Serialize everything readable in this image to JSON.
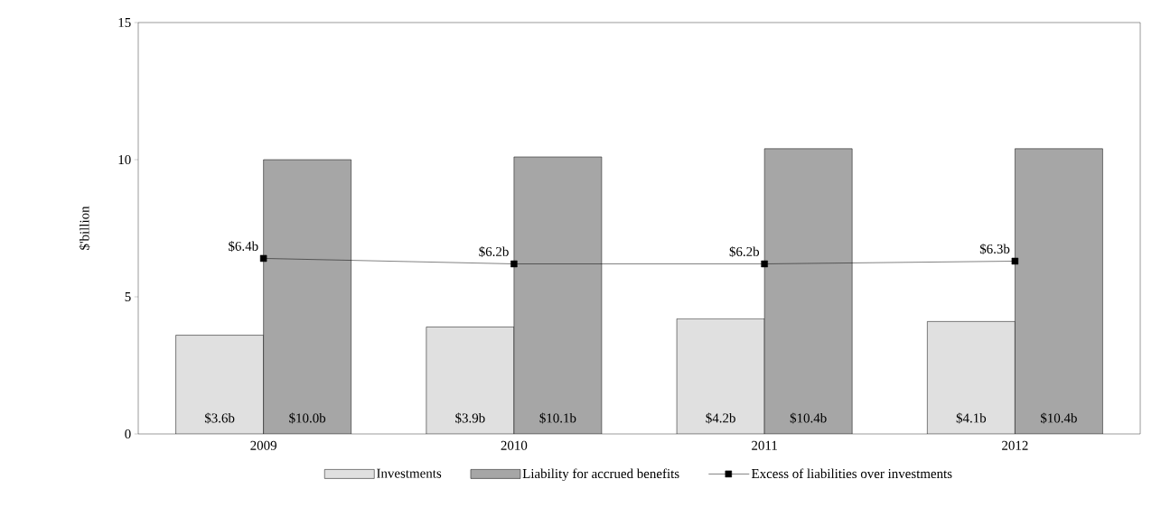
{
  "chart_data": {
    "type": "bar",
    "ylabel": "$'billion",
    "categories": [
      "2009",
      "2010",
      "2011",
      "2012"
    ],
    "ylim": [
      0,
      15
    ],
    "yticks": [
      0,
      5,
      10,
      15
    ],
    "legend": "bottom",
    "series": [
      {
        "name": "Investments",
        "color": "#e0e0e0",
        "values": [
          3.6,
          3.9,
          4.2,
          4.1
        ],
        "value_labels": [
          "$3.6b",
          "$3.9b",
          "$4.2b",
          "$4.1b"
        ]
      },
      {
        "name": "Liability for accrued benefits",
        "color": "#a6a6a6",
        "values": [
          10.0,
          10.1,
          10.4,
          10.4
        ],
        "value_labels": [
          "$10.0b",
          "$10.1b",
          "$10.4b",
          "$10.4b"
        ]
      },
      {
        "name": "Excess of liabilities over investments",
        "type": "line",
        "marker": "square",
        "color": "#000000",
        "values": [
          6.4,
          6.2,
          6.2,
          6.3
        ],
        "value_labels": [
          "$6.4b",
          "$6.2b",
          "$6.2b",
          "$6.3b"
        ]
      }
    ]
  }
}
